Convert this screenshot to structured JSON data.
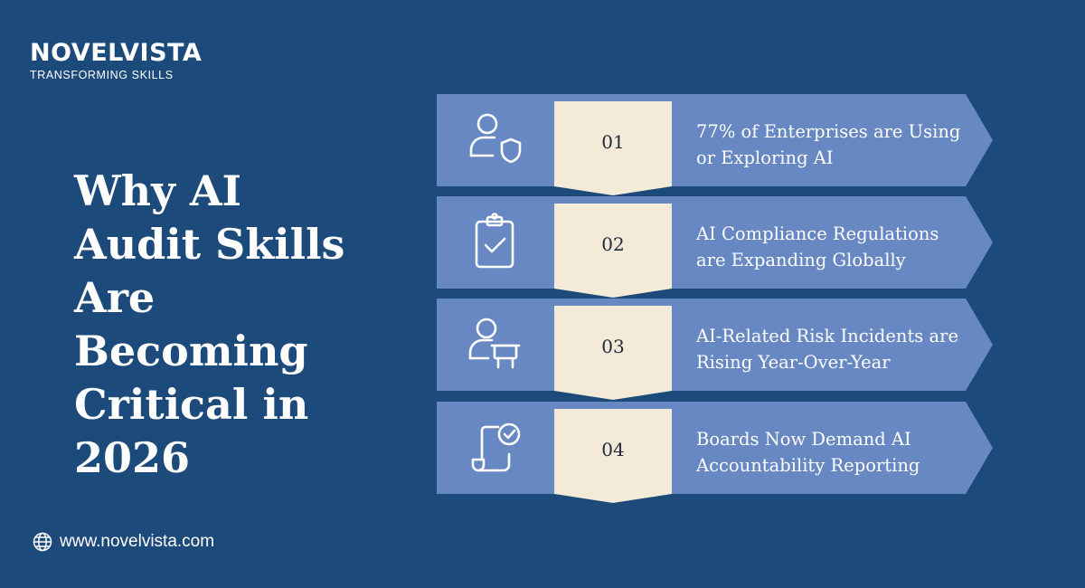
{
  "brand": {
    "name": "NOVELVISTA",
    "tagline": "TRANSFORMING SKILLS"
  },
  "headline": "Why AI Audit Skills Are Becoming Critical in 2026",
  "steps": [
    {
      "number": "01",
      "icon": "user-shield-icon",
      "text": "77% of Enterprises are Using or Exploring AI"
    },
    {
      "number": "02",
      "icon": "clipboard-check-icon",
      "text": "AI Compliance Regulations are Expanding Globally"
    },
    {
      "number": "03",
      "icon": "user-presentation-icon",
      "text": "AI-Related Risk Incidents are Rising Year-Over-Year"
    },
    {
      "number": "04",
      "icon": "document-check-icon",
      "text": "Boards Now Demand AI Accountability Reporting"
    }
  ],
  "website": {
    "icon": "globe-icon",
    "url": "www.novelvista.com"
  },
  "colors": {
    "background": "#1c4a7a",
    "arrow": "#6888c3",
    "ribbon": "#f3ead7",
    "text": "#ffffff"
  }
}
